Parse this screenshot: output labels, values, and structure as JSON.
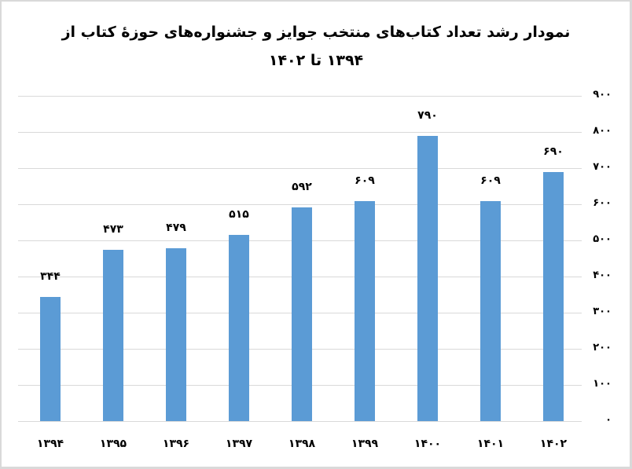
{
  "chart_data": {
    "type": "bar",
    "title": "نمودار رشد تعداد کتاب‌های منتخب جوایز و جشنواره‌های حوزهٔ کتاب از",
    "subtitle": "۱۳۹۴ تا ۱۴۰۲",
    "categories": [
      "۱۳۹۴",
      "۱۳۹۵",
      "۱۳۹۶",
      "۱۳۹۷",
      "۱۳۹۸",
      "۱۳۹۹",
      "۱۴۰۰",
      "۱۴۰۱",
      "۱۴۰۲"
    ],
    "values": [
      344,
      473,
      479,
      515,
      592,
      609,
      790,
      609,
      690
    ],
    "value_labels": [
      "۳۴۴",
      "۴۷۳",
      "۴۷۹",
      "۵۱۵",
      "۵۹۲",
      "۶۰۹",
      "۷۹۰",
      "۶۰۹",
      "۶۹۰"
    ],
    "xlabel": "",
    "ylabel": "",
    "ylim": [
      0,
      900
    ],
    "yticks": [
      "۰",
      "۱۰۰",
      "۲۰۰",
      "۳۰۰",
      "۴۰۰",
      "۵۰۰",
      "۶۰۰",
      "۷۰۰",
      "۸۰۰",
      "۹۰۰"
    ],
    "y_axis_position": "right",
    "grid": true,
    "legend": "none",
    "bar_color": "#5b9bd5"
  }
}
